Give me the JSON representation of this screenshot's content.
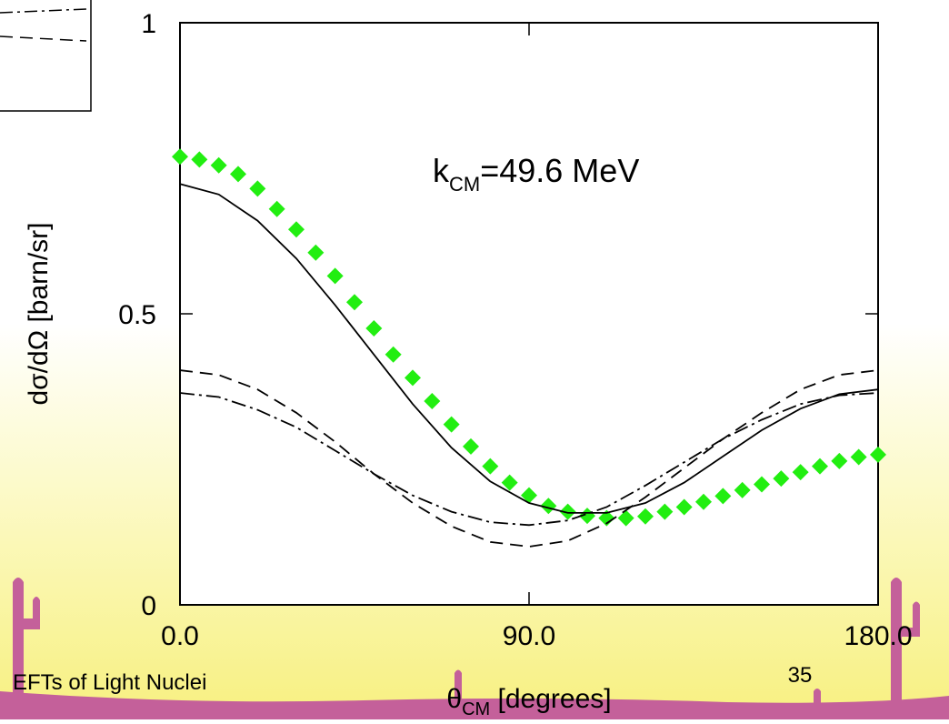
{
  "chart_data": {
    "type": "line",
    "annotation": {
      "main": "k",
      "sub": "CM",
      "rest": "=49.6 MeV"
    },
    "x_label": {
      "main": "θ",
      "sub": "CM",
      "rest": " [degrees]"
    },
    "y_label": "dσ/dΩ [barn/sr]",
    "xlim": [
      0,
      180
    ],
    "xticks": [
      {
        "value": 0,
        "label": "0.0"
      },
      {
        "value": 90,
        "label": "90.0"
      },
      {
        "value": 180,
        "label": "180.0"
      }
    ],
    "ylim": [
      0,
      1
    ],
    "yticks": [
      0,
      0.5,
      1
    ],
    "series": [
      {
        "color": "#22ee11",
        "marker": "diamond",
        "x": [
          0,
          5,
          10,
          15,
          20,
          25,
          30,
          35,
          40,
          45,
          50,
          55,
          60,
          65,
          70,
          75,
          80,
          85,
          90,
          95,
          100,
          105,
          110,
          115,
          120,
          125,
          130,
          135,
          140,
          145,
          150,
          155,
          160,
          165,
          170,
          175,
          180
        ],
        "values": [
          0.77,
          0.765,
          0.755,
          0.74,
          0.715,
          0.68,
          0.645,
          0.605,
          0.565,
          0.52,
          0.475,
          0.43,
          0.39,
          0.35,
          0.31,
          0.272,
          0.238,
          0.21,
          0.188,
          0.17,
          0.16,
          0.153,
          0.149,
          0.149,
          0.152,
          0.16,
          0.168,
          0.177,
          0.187,
          0.197,
          0.207,
          0.217,
          0.228,
          0.238,
          0.247,
          0.254,
          0.258
        ]
      },
      {
        "color": "#000000",
        "dash": "solid",
        "x": [
          0,
          10,
          20,
          30,
          40,
          50,
          60,
          70,
          80,
          90,
          100,
          110,
          120,
          130,
          140,
          150,
          160,
          170,
          180
        ],
        "values": [
          0.723,
          0.705,
          0.66,
          0.595,
          0.515,
          0.43,
          0.345,
          0.27,
          0.212,
          0.175,
          0.158,
          0.158,
          0.175,
          0.21,
          0.255,
          0.3,
          0.337,
          0.362,
          0.37
        ]
      },
      {
        "color": "#000000",
        "dash": "dashed",
        "x": [
          0,
          10,
          20,
          30,
          40,
          50,
          60,
          70,
          80,
          90,
          100,
          110,
          120,
          130,
          140,
          150,
          160,
          170,
          180
        ],
        "values": [
          0.403,
          0.395,
          0.37,
          0.33,
          0.28,
          0.225,
          0.175,
          0.135,
          0.108,
          0.1,
          0.11,
          0.14,
          0.185,
          0.235,
          0.285,
          0.33,
          0.37,
          0.395,
          0.403
        ]
      },
      {
        "color": "#000000",
        "dash": "dashdot",
        "x": [
          0,
          10,
          20,
          30,
          40,
          50,
          60,
          70,
          80,
          90,
          100,
          110,
          120,
          130,
          140,
          150,
          160,
          170,
          180
        ],
        "values": [
          0.364,
          0.357,
          0.335,
          0.305,
          0.265,
          0.225,
          0.188,
          0.16,
          0.142,
          0.137,
          0.145,
          0.168,
          0.205,
          0.245,
          0.285,
          0.318,
          0.345,
          0.36,
          0.364
        ]
      }
    ]
  },
  "footer": {
    "title": "EFTs of Light Nuclei",
    "page": "35"
  }
}
